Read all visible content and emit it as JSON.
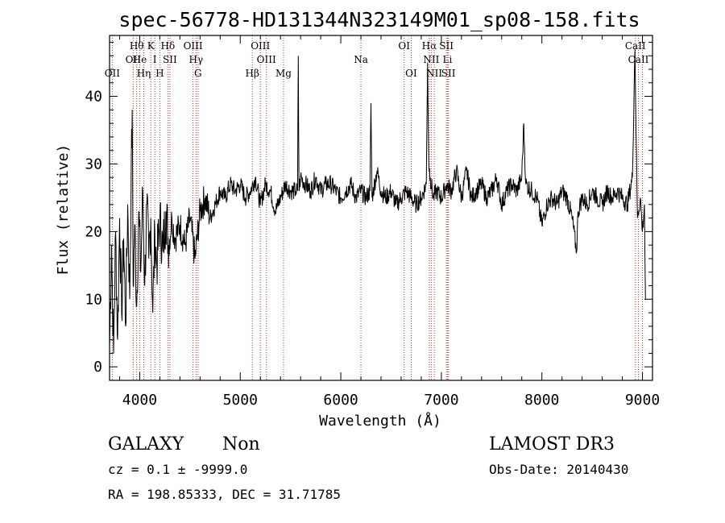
{
  "chart_data": {
    "type": "line",
    "title": "spec-56778-HD131344N323149M01_sp08-158.fits",
    "xlabel": "Wavelength (Å)",
    "ylabel": "Flux (relative)",
    "xlim": [
      3700,
      9100
    ],
    "ylim": [
      -2,
      49
    ],
    "xticks": [
      {
        "value": 4000,
        "label": "4000"
      },
      {
        "value": 5000,
        "label": "5000"
      },
      {
        "value": 6000,
        "label": "6000"
      },
      {
        "value": 7000,
        "label": "7000"
      },
      {
        "value": 8000,
        "label": "8000"
      },
      {
        "value": 9000,
        "label": "9000"
      }
    ],
    "yticks": [
      {
        "value": 0,
        "label": "0"
      },
      {
        "value": 10,
        "label": "10"
      },
      {
        "value": 20,
        "label": "20"
      },
      {
        "value": 30,
        "label": "30"
      },
      {
        "value": 40,
        "label": "40"
      }
    ],
    "spectrum_anchors": [
      [
        3700,
        3
      ],
      [
        3720,
        18
      ],
      [
        3740,
        2
      ],
      [
        3760,
        20
      ],
      [
        3780,
        4
      ],
      [
        3800,
        22
      ],
      [
        3820,
        8
      ],
      [
        3840,
        19
      ],
      [
        3860,
        6
      ],
      [
        3880,
        24
      ],
      [
        3900,
        10
      ],
      [
        3915,
        28
      ],
      [
        3925,
        38
      ],
      [
        3935,
        12
      ],
      [
        3950,
        21
      ],
      [
        3970,
        9
      ],
      [
        3990,
        23
      ],
      [
        4010,
        14
      ],
      [
        4030,
        26
      ],
      [
        4050,
        12
      ],
      [
        4070,
        24
      ],
      [
        4090,
        16
      ],
      [
        4110,
        22
      ],
      [
        4130,
        8
      ],
      [
        4150,
        20
      ],
      [
        4170,
        15
      ],
      [
        4200,
        22
      ],
      [
        4230,
        17
      ],
      [
        4260,
        23
      ],
      [
        4290,
        18
      ],
      [
        4320,
        22
      ],
      [
        4350,
        19
      ],
      [
        4400,
        21
      ],
      [
        4450,
        18
      ],
      [
        4500,
        22
      ],
      [
        4550,
        16
      ],
      [
        4600,
        23
      ],
      [
        4650,
        25
      ],
      [
        4700,
        22
      ],
      [
        4750,
        24
      ],
      [
        4800,
        26
      ],
      [
        4850,
        25
      ],
      [
        4900,
        27
      ],
      [
        4950,
        26
      ],
      [
        5000,
        27
      ],
      [
        5050,
        25
      ],
      [
        5100,
        26
      ],
      [
        5150,
        28
      ],
      [
        5200,
        24
      ],
      [
        5250,
        27
      ],
      [
        5300,
        26
      ],
      [
        5350,
        23
      ],
      [
        5400,
        25
      ],
      [
        5450,
        27
      ],
      [
        5500,
        26
      ],
      [
        5550,
        26
      ],
      [
        5570,
        26
      ],
      [
        5577,
        46
      ],
      [
        5584,
        26
      ],
      [
        5600,
        28
      ],
      [
        5650,
        27
      ],
      [
        5700,
        26
      ],
      [
        5750,
        28
      ],
      [
        5800,
        26
      ],
      [
        5850,
        27
      ],
      [
        5900,
        27
      ],
      [
        5950,
        26
      ],
      [
        6000,
        25
      ],
      [
        6050,
        26
      ],
      [
        6100,
        27
      ],
      [
        6150,
        25
      ],
      [
        6200,
        26
      ],
      [
        6250,
        25
      ],
      [
        6290,
        26
      ],
      [
        6300,
        39
      ],
      [
        6310,
        25
      ],
      [
        6360,
        29
      ],
      [
        6400,
        26
      ],
      [
        6450,
        25
      ],
      [
        6500,
        26
      ],
      [
        6550,
        24
      ],
      [
        6600,
        25
      ],
      [
        6650,
        26
      ],
      [
        6700,
        25
      ],
      [
        6750,
        24
      ],
      [
        6800,
        25
      ],
      [
        6850,
        27
      ],
      [
        6863,
        45
      ],
      [
        6875,
        30
      ],
      [
        6890,
        28
      ],
      [
        6920,
        25
      ],
      [
        6950,
        26
      ],
      [
        7000,
        25
      ],
      [
        7030,
        26
      ],
      [
        7050,
        27
      ],
      [
        7100,
        26
      ],
      [
        7150,
        29
      ],
      [
        7200,
        25
      ],
      [
        7250,
        29
      ],
      [
        7300,
        25
      ],
      [
        7350,
        26
      ],
      [
        7400,
        27
      ],
      [
        7450,
        25
      ],
      [
        7500,
        26
      ],
      [
        7550,
        28
      ],
      [
        7600,
        24
      ],
      [
        7650,
        26
      ],
      [
        7700,
        27
      ],
      [
        7750,
        26
      ],
      [
        7800,
        28
      ],
      [
        7820,
        36
      ],
      [
        7840,
        27
      ],
      [
        7900,
        26
      ],
      [
        7950,
        25
      ],
      [
        8000,
        21
      ],
      [
        8050,
        24
      ],
      [
        8100,
        25
      ],
      [
        8150,
        24
      ],
      [
        8200,
        26
      ],
      [
        8250,
        25
      ],
      [
        8300,
        22
      ],
      [
        8345,
        17
      ],
      [
        8360,
        23
      ],
      [
        8400,
        25
      ],
      [
        8450,
        24
      ],
      [
        8500,
        26
      ],
      [
        8550,
        25
      ],
      [
        8600,
        24
      ],
      [
        8650,
        26
      ],
      [
        8700,
        25
      ],
      [
        8750,
        26
      ],
      [
        8800,
        25
      ],
      [
        8850,
        24
      ],
      [
        8900,
        28
      ],
      [
        8925,
        47
      ],
      [
        8950,
        22
      ],
      [
        8980,
        25
      ],
      [
        9000,
        20
      ],
      [
        9020,
        24
      ],
      [
        9030,
        10
      ]
    ],
    "line_markers": [
      {
        "wavelength": 3727,
        "label": "OII",
        "row": 3
      },
      {
        "wavelength": 3935,
        "label": "OII",
        "row": 2
      },
      {
        "wavelength": 3970,
        "label": "Hθ",
        "row": 1
      },
      {
        "wavelength": 4000,
        "label": "He",
        "row": 2
      },
      {
        "wavelength": 4040,
        "label": "Hη",
        "row": 3
      },
      {
        "wavelength": 4110,
        "label": "K",
        "row": 1
      },
      {
        "wavelength": 4150,
        "label": "I",
        "row": 2
      },
      {
        "wavelength": 4200,
        "label": "H",
        "row": 3
      },
      {
        "wavelength": 4280,
        "label": "Hδ",
        "row": 1
      },
      {
        "wavelength": 4300,
        "label": "SII",
        "row": 2
      },
      {
        "wavelength": 4530,
        "label": "OIII",
        "row": 1
      },
      {
        "wavelength": 4560,
        "label": "Hγ",
        "row": 2
      },
      {
        "wavelength": 4580,
        "label": "G",
        "row": 3
      },
      {
        "wavelength": 5120,
        "label": "Hβ",
        "row": 3
      },
      {
        "wavelength": 5200,
        "label": "OIII",
        "row": 1
      },
      {
        "wavelength": 5260,
        "label": "OIII",
        "row": 2
      },
      {
        "wavelength": 5430,
        "label": "Mg",
        "row": 3
      },
      {
        "wavelength": 6200,
        "label": "Na",
        "row": 2
      },
      {
        "wavelength": 6630,
        "label": "OI",
        "row": 1
      },
      {
        "wavelength": 6700,
        "label": "OI",
        "row": 3
      },
      {
        "wavelength": 6880,
        "label": "Hα",
        "row": 1
      },
      {
        "wavelength": 6900,
        "label": "NII",
        "row": 2
      },
      {
        "wavelength": 6930,
        "label": "NII",
        "row": 3
      },
      {
        "wavelength": 7050,
        "label": "SII",
        "row": 1
      },
      {
        "wavelength": 7060,
        "label": "Li",
        "row": 2
      },
      {
        "wavelength": 7070,
        "label": "SII",
        "row": 3
      },
      {
        "wavelength": 8930,
        "label": "CaII",
        "row": 1
      },
      {
        "wavelength": 8960,
        "label": "CaII",
        "row": 2
      },
      {
        "wavelength": 9000,
        "label": "",
        "row": 0
      }
    ],
    "colors": {
      "marker": "#c0392b",
      "spectrum": "#000000",
      "axes": "#000000"
    }
  },
  "info": {
    "object_class": "GALAXY",
    "subclass": "Non",
    "survey": "LAMOST DR3",
    "cz": "cz = 0.1 ± -9999.0",
    "obs_date": "Obs-Date: 20140430",
    "coords": "RA = 198.85333, DEC =  31.71785"
  }
}
